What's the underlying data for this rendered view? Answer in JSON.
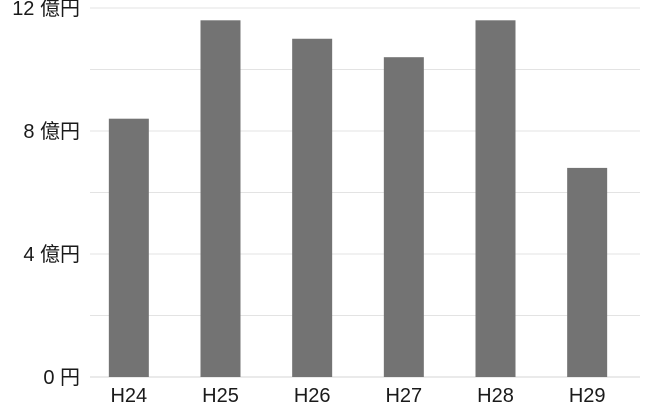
{
  "chart_data": {
    "type": "bar",
    "categories": [
      "H24",
      "H25",
      "H26",
      "H27",
      "H28",
      "H29"
    ],
    "values": [
      8.4,
      11.6,
      11.0,
      10.4,
      11.6,
      6.8
    ],
    "ylim": [
      0,
      12
    ],
    "y_ticks": [
      {
        "value": 0,
        "label": "0 円"
      },
      {
        "value": 4,
        "label": "4 億円"
      },
      {
        "value": 8,
        "label": "8 億円"
      },
      {
        "value": 12,
        "label": "12 億円"
      }
    ],
    "minor_grid": [
      2,
      6,
      10
    ],
    "grid": true,
    "bar_color": "#737373"
  }
}
